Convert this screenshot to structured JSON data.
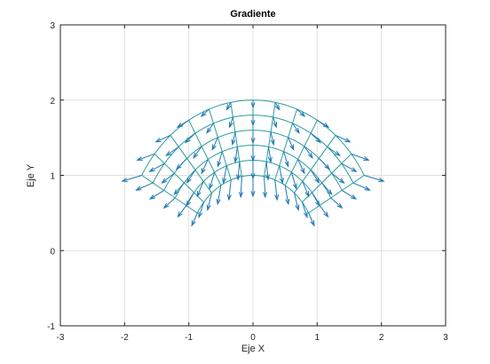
{
  "chart_data": {
    "type": "quiver",
    "title": "Gradiente",
    "xlabel": "Eje X",
    "ylabel": "Eje Y",
    "xlim": [
      -3,
      3
    ],
    "ylim": [
      -1,
      3
    ],
    "xticks": [
      "-3",
      "-2",
      "-1",
      "0",
      "1",
      "2",
      "3"
    ],
    "yticks": [
      "-1",
      "0",
      "1",
      "2",
      "3"
    ],
    "grid": true,
    "mesh": {
      "shape": "polar-sector",
      "r_range": [
        1,
        2
      ],
      "theta_range_deg": [
        30,
        150
      ],
      "r_lines": [
        1.0,
        1.2,
        1.4,
        1.6,
        1.8,
        2.0
      ],
      "theta_lines_deg": [
        30,
        40,
        50,
        60,
        70,
        80,
        90,
        100,
        110,
        120,
        130,
        140,
        150
      ],
      "color": "#2a9d9b"
    },
    "vectors": {
      "description_of_field": "gradient vectors of function over the polar mesh",
      "color": "#1f77b4"
    }
  },
  "colors": {
    "mesh": "#2a9d9b",
    "arrows": "#1f77b4",
    "grid": "#e0e0e0",
    "axis": "#262626"
  }
}
